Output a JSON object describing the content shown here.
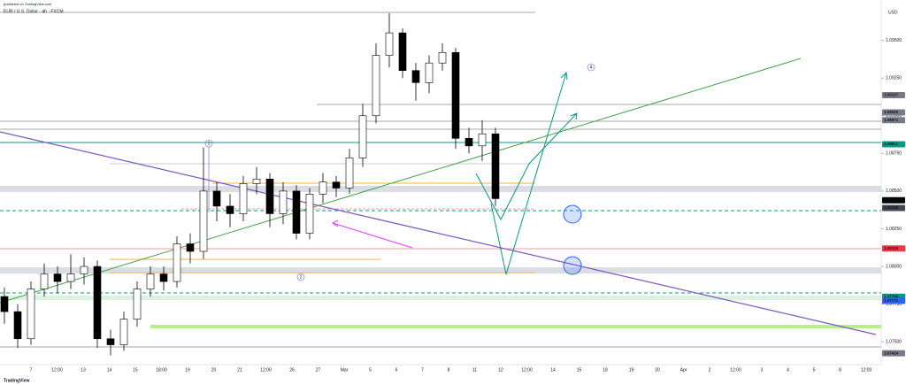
{
  "chart_data": {
    "type": "candlestick",
    "title": "EUR / U.S. Dollar · 4h · FXCM",
    "subtitle": "published on TradingView.com",
    "y_axis_label": "USD",
    "footer": "TradingView",
    "ylim": [
      1.0736,
      1.0968
    ],
    "yticks": [
      {
        "value": 1.075,
        "label": "1.07500"
      },
      {
        "value": 1.0775,
        "label": "1.07750"
      },
      {
        "value": 1.08,
        "label": "1.08000"
      },
      {
        "value": 1.0825,
        "label": "1.08250"
      },
      {
        "value": 1.085,
        "label": "1.08500"
      },
      {
        "value": 1.0875,
        "label": "1.08750"
      },
      {
        "value": 1.09,
        "label": "1.09000"
      },
      {
        "value": 1.0925,
        "label": "1.09250"
      },
      {
        "value": 1.095,
        "label": "1.09500"
      }
    ],
    "x_labels": [
      "7",
      "12:00",
      "13",
      "14",
      "15",
      "18:00",
      "19",
      "20",
      "21",
      "12:00",
      "26",
      "27",
      "Mar",
      "5",
      "6",
      "7",
      "8",
      "11",
      "12",
      "12:00",
      "14",
      "15",
      "18",
      "19",
      "20",
      "Apr",
      "2",
      "12:00",
      "3",
      "4",
      "5",
      "8",
      "12:00"
    ],
    "open": [
      1.078,
      1.077,
      1.0752,
      1.0785,
      1.0795,
      1.079,
      1.0795,
      1.08,
      1.0752,
      1.0748,
      1.0765,
      1.0785,
      1.0795,
      1.079,
      1.0815,
      1.081,
      1.085,
      1.084,
      1.0835,
      1.0855,
      1.0858,
      1.0835,
      1.085,
      1.0822,
      1.0848,
      1.0856,
      1.0852,
      1.0872,
      1.09,
      1.094,
      1.0955,
      1.093,
      1.0922,
      1.0935,
      1.0942,
      1.0885,
      1.088,
      1.0888
    ],
    "high": [
      1.0786,
      1.0775,
      1.079,
      1.0802,
      1.08,
      1.0808,
      1.0806,
      1.0804,
      1.0758,
      1.077,
      1.079,
      1.08,
      1.08,
      1.082,
      1.0822,
      1.0879,
      1.0856,
      1.0848,
      1.086,
      1.0866,
      1.0862,
      1.0856,
      1.0854,
      1.0852,
      1.0862,
      1.086,
      1.0878,
      1.0908,
      1.0948,
      1.0968,
      1.0958,
      1.0935,
      1.094,
      1.0948,
      1.0945,
      1.0892,
      1.0897,
      1.0892
    ],
    "low": [
      1.0762,
      1.0746,
      1.0748,
      1.078,
      1.0782,
      1.0785,
      1.0788,
      1.0746,
      1.0741,
      1.0744,
      1.076,
      1.078,
      1.0784,
      1.0786,
      1.0802,
      1.0805,
      1.083,
      1.0826,
      1.083,
      1.0848,
      1.0826,
      1.0828,
      1.0818,
      1.0818,
      1.0842,
      1.0846,
      1.0848,
      1.0866,
      1.0895,
      1.0932,
      1.0925,
      1.091,
      1.0915,
      1.093,
      1.0878,
      1.0875,
      1.087,
      1.084
    ],
    "close": [
      1.077,
      1.0752,
      1.0785,
      1.0795,
      1.079,
      1.0795,
      1.08,
      1.0752,
      1.0748,
      1.0765,
      1.0785,
      1.0795,
      1.079,
      1.0815,
      1.081,
      1.085,
      1.084,
      1.0835,
      1.0855,
      1.0858,
      1.0835,
      1.085,
      1.0822,
      1.0848,
      1.0856,
      1.0852,
      1.0872,
      1.09,
      1.094,
      1.0955,
      1.093,
      1.0922,
      1.0935,
      1.0942,
      1.0885,
      1.088,
      1.0888,
      1.0845
    ],
    "up_color": "#ffffff",
    "down_color": "#000000",
    "price_labels": [
      {
        "value": 1.09137,
        "color": "#787b86"
      },
      {
        "value": 1.09022,
        "color": "#787b86"
      },
      {
        "value": 1.08971,
        "color": "#787b86"
      },
      {
        "value": 1.08811,
        "color": "#089981"
      },
      {
        "value": 1.08439,
        "color": "#000000"
      },
      {
        "value": 1.08388,
        "color": "#434651"
      },
      {
        "value": 1.08119,
        "color": "#f23645"
      },
      {
        "value": 1.07799,
        "color": "#089981"
      },
      {
        "value": 1.07772,
        "color": "#2962ff"
      },
      {
        "value": 1.07424,
        "color": "#787b86"
      }
    ],
    "annotations": [
      "1",
      "2",
      "4"
    ]
  }
}
